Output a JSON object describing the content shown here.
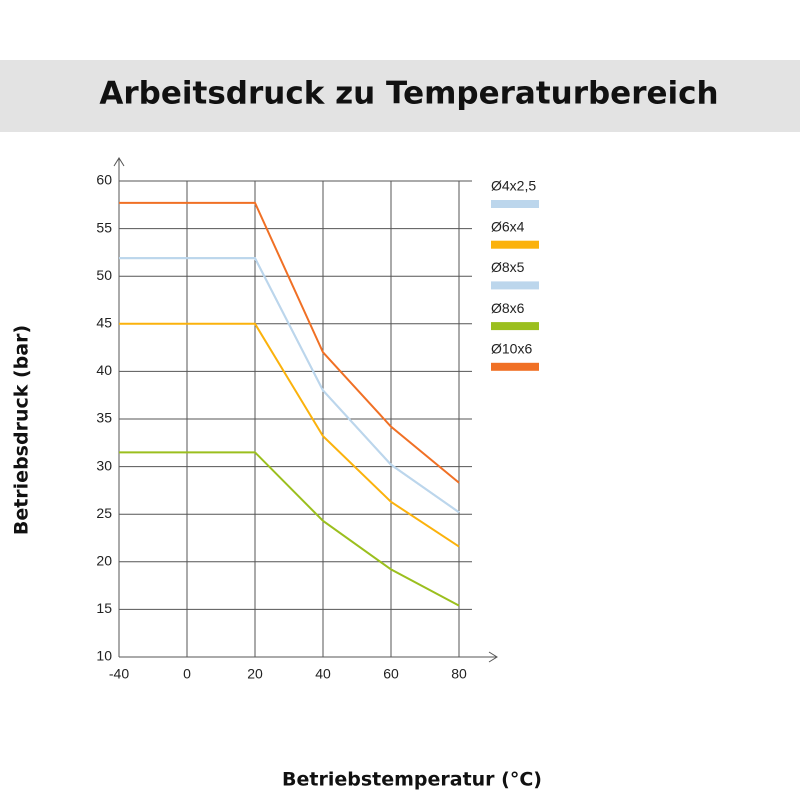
{
  "chart_data": {
    "type": "line",
    "title": "Arbeitsdruck zu Temperaturbereich",
    "x_label": "Betriebstemperatur (°C)",
    "y_label": "Betriebsdruck (bar)",
    "categories": [
      "-40",
      "0",
      "20",
      "40",
      "60",
      "80"
    ],
    "series": [
      {
        "name": "Ø4x2,5",
        "color": "#bcd6ec",
        "values": [
          51.9,
          51.9,
          51.9,
          38.0,
          30.2,
          25.2
        ]
      },
      {
        "name": "Ø6x4",
        "color": "#fbb20c",
        "values": [
          45,
          45,
          45,
          33.2,
          26.3,
          21.6
        ]
      },
      {
        "name": "Ø8x5",
        "color": "#bcd6ec",
        "values": [
          51.9,
          51.9,
          51.9,
          38.0,
          30.2,
          25.2
        ]
      },
      {
        "name": "Ø8x6",
        "color": "#9bbf1e",
        "values": [
          31.5,
          31.5,
          31.5,
          24.3,
          19.2,
          15.4
        ]
      },
      {
        "name": "Ø10x6",
        "color": "#f07025",
        "values": [
          57.7,
          57.7,
          57.7,
          42.0,
          34.2,
          28.3
        ]
      }
    ],
    "ylim": [
      10,
      60
    ],
    "yticks": [
      10,
      15,
      20,
      25,
      30,
      35,
      40,
      45,
      50,
      55,
      60
    ],
    "grid": true
  }
}
